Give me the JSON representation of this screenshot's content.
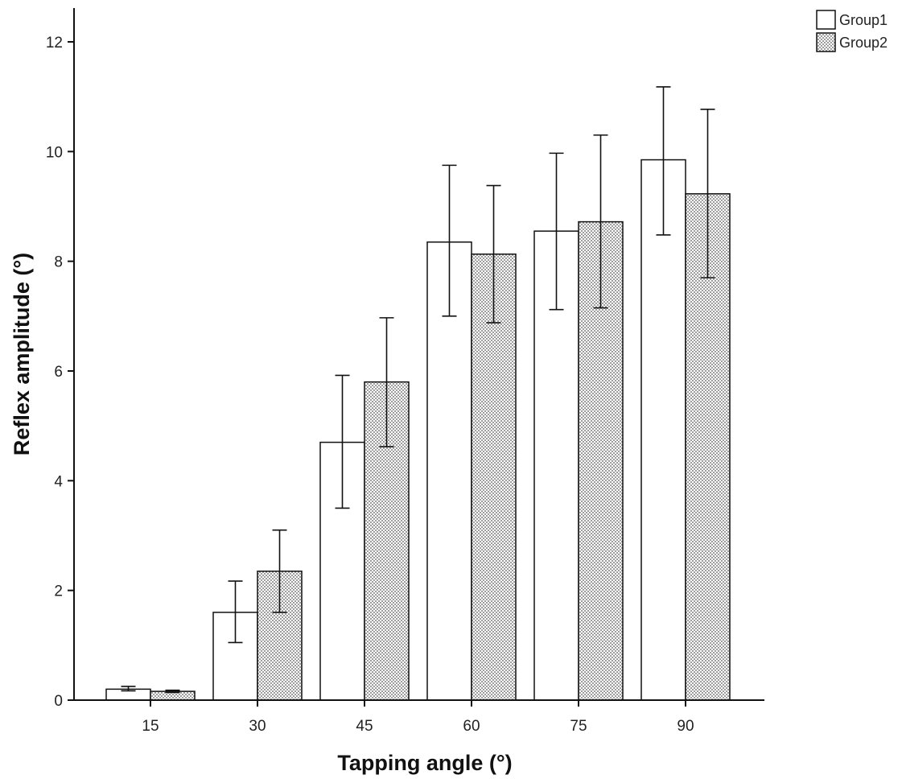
{
  "chart_data": {
    "type": "bar",
    "title": "",
    "xlabel": "Tapping angle (°)",
    "ylabel": "Reflex amplitude (°)",
    "categories": [
      "15",
      "30",
      "45",
      "60",
      "75",
      "90"
    ],
    "ylim": [
      0,
      12
    ],
    "yticks": [
      "0",
      "2",
      "4",
      "6",
      "8",
      "10",
      "12"
    ],
    "grid": false,
    "legend_position": "top-right",
    "series": [
      {
        "name": "Group1",
        "pattern": "none",
        "values": [
          0.2,
          1.6,
          4.7,
          8.35,
          8.55,
          9.85
        ],
        "error_low": [
          0.17,
          1.05,
          3.5,
          7.0,
          7.12,
          8.48
        ],
        "error_high": [
          0.25,
          2.17,
          5.92,
          9.75,
          9.97,
          11.18
        ]
      },
      {
        "name": "Group2",
        "pattern": "dotted",
        "values": [
          0.16,
          2.35,
          5.8,
          8.13,
          8.72,
          9.23
        ],
        "error_low": [
          0.14,
          1.6,
          4.62,
          6.88,
          7.15,
          7.7
        ],
        "error_high": [
          0.18,
          3.1,
          6.97,
          9.38,
          10.3,
          10.77
        ]
      }
    ],
    "colors": {
      "bar_fill": "#ffffff",
      "bar_stroke": "#111111",
      "dot": "#8a8a8a",
      "axis": "#111111"
    }
  }
}
